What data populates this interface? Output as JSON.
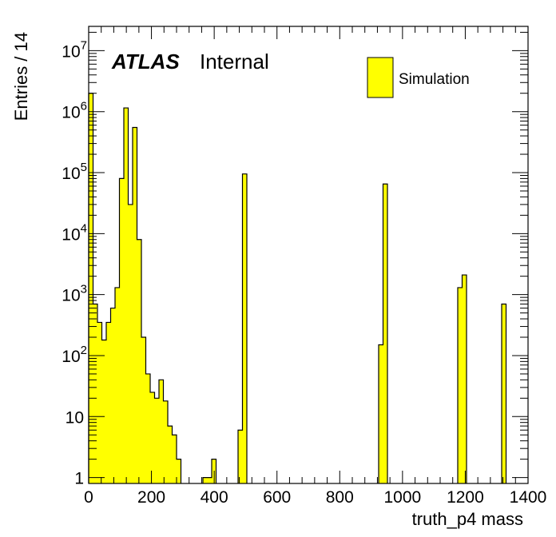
{
  "chart_data": {
    "type": "bar",
    "title": "",
    "xlabel": "truth_p4 mass",
    "ylabel": "Entries / 14",
    "xlim": [
      0,
      1400
    ],
    "ylim": [
      0.8,
      25000000
    ],
    "yscale": "log",
    "bin_width": 14,
    "x_ticks": [
      0,
      200,
      400,
      600,
      800,
      1000,
      1200,
      1400
    ],
    "x_tick_labels": [
      "0",
      "200",
      "400",
      "600",
      "800",
      "1000",
      "1200",
      "1400"
    ],
    "y_ticks": [
      {
        "value": 1,
        "base": "1",
        "exp": ""
      },
      {
        "value": 10,
        "base": "10",
        "exp": ""
      },
      {
        "value": 100,
        "base": "10",
        "exp": "2"
      },
      {
        "value": 1000,
        "base": "10",
        "exp": "3"
      },
      {
        "value": 10000,
        "base": "10",
        "exp": "4"
      },
      {
        "value": 100000,
        "base": "10",
        "exp": "5"
      },
      {
        "value": 1000000,
        "base": "10",
        "exp": "6"
      },
      {
        "value": 10000000,
        "base": "10",
        "exp": "7"
      }
    ],
    "fill_color": "#ffff00",
    "line_color": "#000000",
    "label_primary": "ATLAS",
    "label_secondary": "Internal",
    "legend": [
      {
        "name": "Simulation",
        "color": "#ffff00"
      }
    ],
    "legend_position": "top-right",
    "grid": false,
    "bins": [
      {
        "x": 0,
        "y": 2000000
      },
      {
        "x": 14,
        "y": 700
      },
      {
        "x": 28,
        "y": 350
      },
      {
        "x": 42,
        "y": 180
      },
      {
        "x": 56,
        "y": 350
      },
      {
        "x": 70,
        "y": 600
      },
      {
        "x": 84,
        "y": 1300
      },
      {
        "x": 98,
        "y": 80000
      },
      {
        "x": 112,
        "y": 1150000
      },
      {
        "x": 126,
        "y": 30000
      },
      {
        "x": 140,
        "y": 550000
      },
      {
        "x": 154,
        "y": 8000
      },
      {
        "x": 168,
        "y": 200
      },
      {
        "x": 182,
        "y": 50
      },
      {
        "x": 196,
        "y": 25
      },
      {
        "x": 210,
        "y": 20
      },
      {
        "x": 224,
        "y": 40
      },
      {
        "x": 238,
        "y": 18
      },
      {
        "x": 252,
        "y": 7
      },
      {
        "x": 266,
        "y": 5
      },
      {
        "x": 280,
        "y": 2
      },
      {
        "x": 364,
        "y": 1
      },
      {
        "x": 378,
        "y": 1
      },
      {
        "x": 392,
        "y": 2
      },
      {
        "x": 476,
        "y": 6
      },
      {
        "x": 490,
        "y": 95000
      },
      {
        "x": 924,
        "y": 150
      },
      {
        "x": 938,
        "y": 65000
      },
      {
        "x": 1176,
        "y": 1300
      },
      {
        "x": 1190,
        "y": 2100
      },
      {
        "x": 1316,
        "y": 700
      }
    ]
  }
}
